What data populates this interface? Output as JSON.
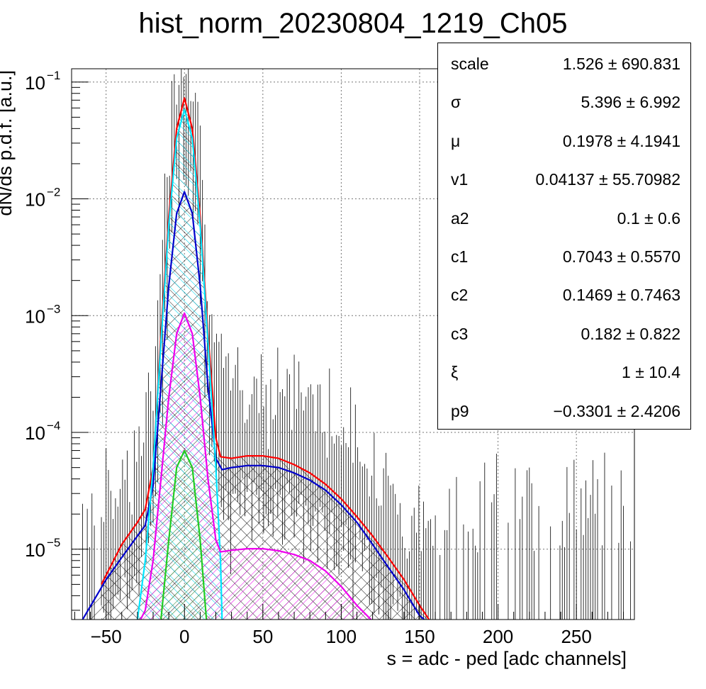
{
  "title": "hist_norm_20230804_1219_Ch05",
  "stats": [
    {
      "name": "scale",
      "value": "1.526 ± 690.831"
    },
    {
      "name": "σ",
      "value": "5.396 ± 6.992"
    },
    {
      "name": "μ",
      "value": "0.1978 ± 4.1941"
    },
    {
      "name": "v1",
      "value": "0.04137 ± 55.70982"
    },
    {
      "name": "a2",
      "value": "0.1 ± 0.6"
    },
    {
      "name": "c1",
      "value": "0.7043 ± 0.5570"
    },
    {
      "name": "c2",
      "value": "0.1469 ± 0.7463"
    },
    {
      "name": "c3",
      "value": "0.182 ± 0.822"
    },
    {
      "name": "ξ",
      "value": "1 ± 10.4"
    },
    {
      "name": "p9",
      "value": "−0.3301 ± 2.4206"
    }
  ],
  "chart_data": {
    "type": "line",
    "title": "hist_norm_20230804_1219_Ch05",
    "xlabel": "s = adc - ped [adc channels]",
    "ylabel": "dN/ds p.d.f. [a.u.]",
    "xlim": [
      -72,
      287
    ],
    "ylim": [
      2.5e-06,
      0.13
    ],
    "yscale": "log",
    "grid": true,
    "x_ticks": [
      -50,
      0,
      50,
      100,
      150,
      200,
      250
    ],
    "x_tick_labels": [
      "−50",
      "0",
      "50",
      "100",
      "150",
      "200",
      "250"
    ],
    "y_ticks": [
      {
        "value": 0.1,
        "base": "10",
        "exp": "−1"
      },
      {
        "value": 0.01,
        "base": "10",
        "exp": "−2"
      },
      {
        "value": 0.001,
        "base": "10",
        "exp": "−3"
      },
      {
        "value": 0.0001,
        "base": "10",
        "exp": "−4"
      },
      {
        "value": 1e-05,
        "base": "10",
        "exp": "−5"
      }
    ],
    "series": [
      {
        "color": "#ff0000",
        "x": [
          -53,
          -40,
          -30,
          -25,
          -20,
          -15,
          -10,
          -5,
          0,
          5,
          10,
          15,
          20,
          23,
          30,
          40,
          50,
          60,
          70,
          80,
          90,
          100,
          110,
          120,
          130,
          140,
          150,
          156
        ],
        "y": [
          5e-06,
          1.1e-05,
          1.7e-05,
          2.2e-05,
          5e-05,
          0.0007,
          0.007,
          0.04,
          0.073,
          0.04,
          0.007,
          0.0007,
          9e-05,
          6.2e-05,
          6e-05,
          6.3e-05,
          6.3e-05,
          6e-05,
          5.3e-05,
          4.5e-05,
          3.6e-05,
          2.7e-05,
          1.9e-05,
          1.3e-05,
          8.5e-06,
          5.5e-06,
          3.3e-06,
          2.5e-06
        ]
      },
      {
        "color": "#00e5ff",
        "x": [
          -30,
          -25,
          -20,
          -15,
          -10,
          -5,
          0,
          5,
          10,
          15,
          20,
          23,
          24
        ],
        "y": [
          2.5e-06,
          8e-06,
          5e-05,
          0.0006,
          0.006,
          0.033,
          0.058,
          0.033,
          0.006,
          0.0006,
          5e-05,
          8e-06,
          2.5e-06
        ]
      },
      {
        "color": "#0000cc",
        "x": [
          -65,
          -50,
          -40,
          -30,
          -25,
          -20,
          -15,
          -10,
          -5,
          0,
          5,
          10,
          15,
          20,
          24,
          30,
          40,
          50,
          60,
          70,
          80,
          90,
          100,
          110,
          120,
          130,
          140,
          150,
          153
        ],
        "y": [
          2.5e-06,
          5.5e-06,
          8.5e-06,
          1.3e-05,
          1.6e-05,
          3.5e-05,
          0.00025,
          0.0018,
          0.0075,
          0.0115,
          0.0075,
          0.0018,
          0.00025,
          6e-05,
          4.8e-05,
          5e-05,
          5.2e-05,
          5.2e-05,
          5e-05,
          4.5e-05,
          3.9e-05,
          3.2e-05,
          2.4e-05,
          1.7e-05,
          1.1e-05,
          7e-06,
          4.5e-06,
          2.7e-06,
          2.5e-06
        ]
      },
      {
        "color": "#ee00ee",
        "x": [
          -28,
          -25,
          -20,
          -15,
          -10,
          -5,
          0,
          5,
          10,
          15,
          20,
          23,
          30,
          40,
          50,
          60,
          70,
          80,
          90,
          100,
          110,
          119
        ],
        "y": [
          2.5e-06,
          3e-06,
          8e-06,
          4e-05,
          0.0002,
          0.0007,
          0.00105,
          0.0007,
          0.0002,
          4e-05,
          1.2e-05,
          9.5e-06,
          9.8e-06,
          1.01e-05,
          1.01e-05,
          9.7e-06,
          9e-06,
          8e-06,
          6.5e-06,
          4.8e-06,
          3.3e-06,
          2.5e-06
        ]
      },
      {
        "color": "#22cc22",
        "x": [
          -15,
          -10,
          -5,
          0,
          5,
          10,
          14
        ],
        "y": [
          2.5e-06,
          1.2e-05,
          5e-05,
          7e-05,
          5e-05,
          1.2e-05,
          2.5e-06
        ]
      }
    ]
  }
}
